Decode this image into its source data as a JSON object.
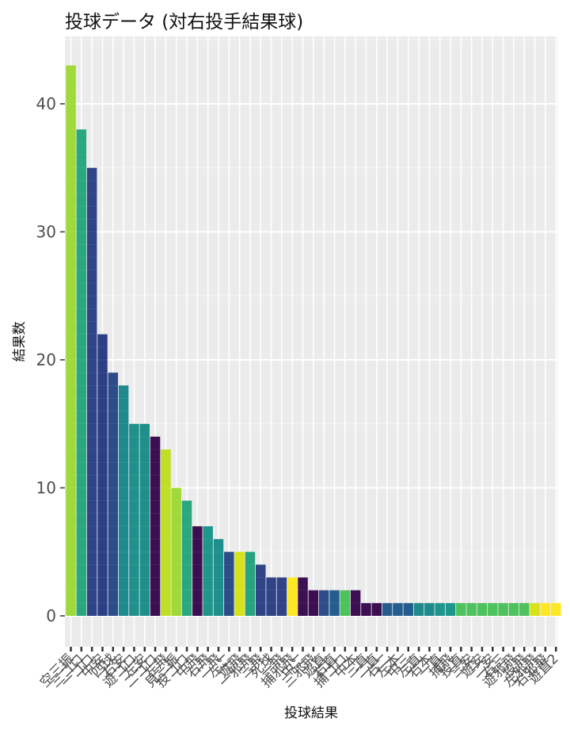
{
  "chart_data": {
    "type": "bar",
    "title": "投球データ (対右投手結果球)",
    "xlabel": "投球結果",
    "ylabel": "結果数",
    "ylim": [
      0,
      45
    ],
    "yticks": [
      0,
      10,
      20,
      30,
      40
    ],
    "grid": true,
    "legend": "none",
    "categories": [
      "空三振",
      "三ゴロ",
      "一ゴロ",
      "中安",
      "四球",
      "右安",
      "遊ゴロ",
      "左安",
      "二ゴロ",
      "左飛",
      "見三振",
      "投ゴロ",
      "中飛",
      "右飛",
      "二飛",
      "左二",
      "遊飛",
      "一邪飛",
      "三飛",
      "死球",
      "一飛",
      "捕邪飛",
      "中二",
      "三邪飛",
      "遊直",
      "右直",
      "捕ゴロ",
      "中本",
      "三直",
      "二直",
      "右二",
      "左本",
      "中三",
      "左直",
      "右本",
      "一直",
      "捕飛",
      "投直",
      "三安",
      "遊安",
      "二安",
      "右三",
      "遊邪飛",
      "投飛",
      "左邪飛",
      "右邪飛",
      "遊直2"
    ],
    "values": [
      43,
      38,
      35,
      22,
      19,
      18,
      15,
      15,
      14,
      13,
      10,
      9,
      7,
      7,
      6,
      5,
      5,
      5,
      4,
      3,
      3,
      3,
      3,
      2,
      2,
      2,
      2,
      2,
      1,
      1,
      1,
      1,
      1,
      1,
      1,
      1,
      1,
      1,
      1,
      1,
      1,
      1,
      1,
      1,
      1,
      1,
      1
    ],
    "colors": [
      "#a0da39",
      "#2ba77f",
      "#2f4386",
      "#2c3f85",
      "#2c4d8a",
      "#1f8a8b",
      "#20908c",
      "#1f8f8c",
      "#3b0f52",
      "#bfdf25",
      "#a0da39",
      "#2ba77f",
      "#3b0f52",
      "#1f968b",
      "#1f8f8c",
      "#2c4d8a",
      "#d8e219",
      "#27a47f",
      "#2f4386",
      "#2f4386",
      "#2f4386",
      "#fde725",
      "#3b0f52",
      "#3b0f52",
      "#2c4d8a",
      "#255e8e",
      "#4ec25d",
      "#3b0f52",
      "#3b0f52",
      "#3b0f52",
      "#255e8e",
      "#255e8e",
      "#255e8e",
      "#1f8a8b",
      "#1f8a8b",
      "#1f968b",
      "#1f968b",
      "#4ec25d",
      "#4ec25d",
      "#4ec25d",
      "#4ec25d",
      "#4ec25d",
      "#4ec25d",
      "#4ec25d",
      "#d8e219",
      "#fde725",
      "#fde725"
    ]
  }
}
